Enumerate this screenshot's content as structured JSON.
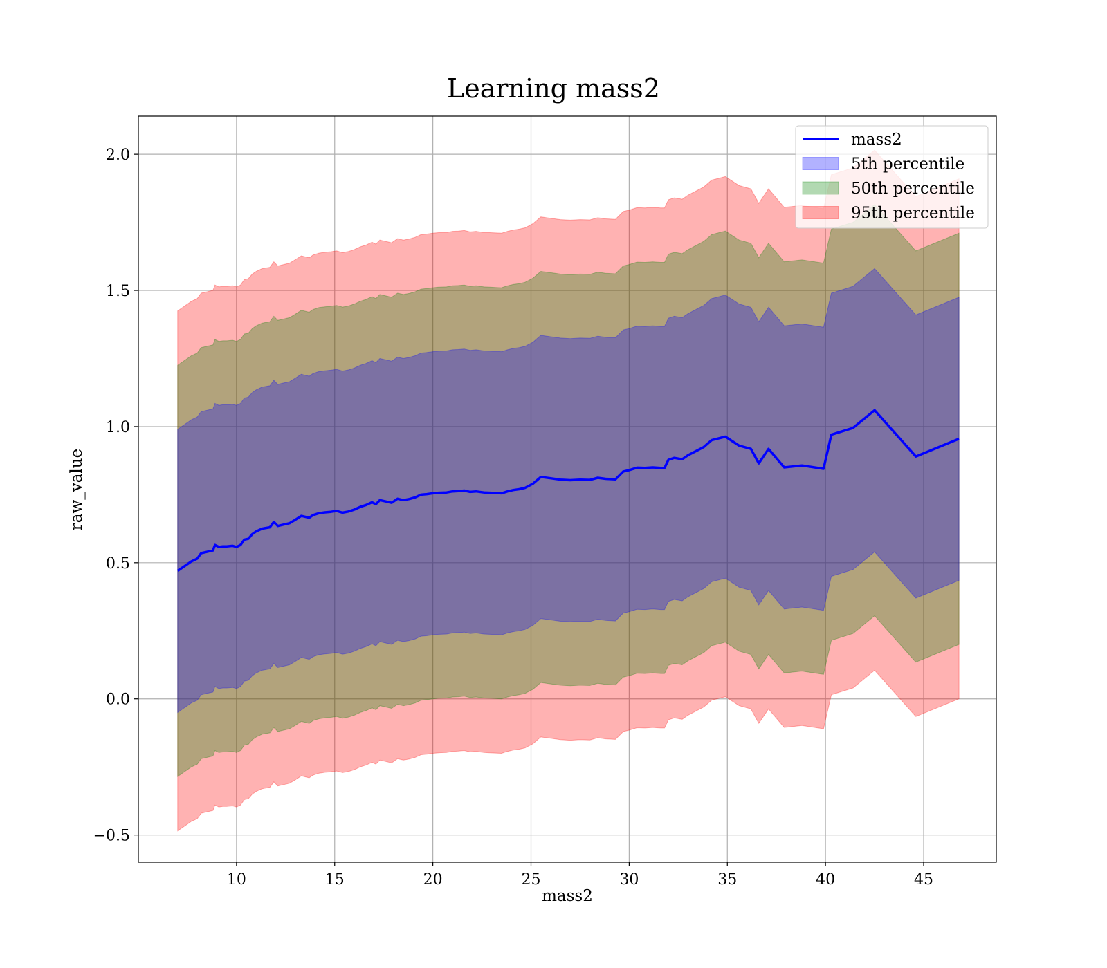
{
  "chart_data": {
    "type": "line",
    "title": "Learning mass2",
    "xlabel": "mass2",
    "ylabel": "raw_value",
    "xlim": [
      5,
      48.7
    ],
    "ylim": [
      -0.6,
      2.14
    ],
    "xticks": [
      10,
      15,
      20,
      25,
      30,
      35,
      40,
      45
    ],
    "yticks": [
      -0.5,
      0.0,
      0.5,
      1.0,
      1.5,
      2.0
    ],
    "ytick_labels": [
      "−0.5",
      "0.0",
      "0.5",
      "1.0",
      "1.5",
      "2.0"
    ],
    "grid": true,
    "legend_position": "top-right",
    "x": [
      7.0,
      7.4,
      7.7,
      8.0,
      8.2,
      8.5,
      8.8,
      8.9,
      9.1,
      9.3,
      9.5,
      9.8,
      10.0,
      10.2,
      10.4,
      10.6,
      10.8,
      11.0,
      11.3,
      11.7,
      11.9,
      12.1,
      12.4,
      12.7,
      13.0,
      13.3,
      13.7,
      13.9,
      14.2,
      14.5,
      14.8,
      15.1,
      15.4,
      15.7,
      16.0,
      16.3,
      16.6,
      16.9,
      17.1,
      17.3,
      17.6,
      17.9,
      18.2,
      18.5,
      18.8,
      19.1,
      19.4,
      19.7,
      20.0,
      20.3,
      20.7,
      21.0,
      21.3,
      21.6,
      21.9,
      22.2,
      22.6,
      22.9,
      23.2,
      23.5,
      23.8,
      24.1,
      24.4,
      24.7,
      25.1,
      25.5,
      26.0,
      26.5,
      27.0,
      27.5,
      28.0,
      28.4,
      28.8,
      29.3,
      29.7,
      30.0,
      30.4,
      30.8,
      31.2,
      31.6,
      31.8,
      32.0,
      32.3,
      32.7,
      33.0,
      33.4,
      33.8,
      34.2,
      34.9,
      35.6,
      36.2,
      36.6,
      37.1,
      37.9,
      38.8,
      39.9,
      40.3,
      41.4,
      42.5,
      44.6,
      46.8
    ],
    "series": [
      {
        "name": "mass2",
        "values": [
          0.47,
          0.49,
          0.505,
          0.515,
          0.535,
          0.54,
          0.545,
          0.565,
          0.558,
          0.56,
          0.56,
          0.562,
          0.558,
          0.565,
          0.585,
          0.588,
          0.605,
          0.615,
          0.625,
          0.63,
          0.65,
          0.635,
          0.64,
          0.645,
          0.658,
          0.672,
          0.665,
          0.675,
          0.682,
          0.685,
          0.687,
          0.69,
          0.684,
          0.688,
          0.695,
          0.705,
          0.712,
          0.722,
          0.715,
          0.73,
          0.725,
          0.72,
          0.735,
          0.73,
          0.734,
          0.74,
          0.75,
          0.752,
          0.755,
          0.757,
          0.758,
          0.762,
          0.763,
          0.765,
          0.76,
          0.762,
          0.758,
          0.757,
          0.756,
          0.755,
          0.762,
          0.767,
          0.77,
          0.775,
          0.79,
          0.815,
          0.81,
          0.805,
          0.803,
          0.805,
          0.804,
          0.812,
          0.808,
          0.806,
          0.835,
          0.84,
          0.849,
          0.848,
          0.85,
          0.848,
          0.848,
          0.878,
          0.885,
          0.88,
          0.895,
          0.91,
          0.925,
          0.95,
          0.963,
          0.93,
          0.918,
          0.865,
          0.918,
          0.85,
          0.857,
          0.845,
          0.97,
          0.995,
          1.06,
          0.89,
          0.955
        ]
      }
    ],
    "bands": [
      {
        "name": "5th percentile",
        "color": "#0000ff",
        "opacity": 0.3,
        "halfwidth": 0.52
      },
      {
        "name": "50th percentile",
        "color": "#008000",
        "opacity": 0.3,
        "halfwidth": 0.755
      },
      {
        "name": "95th percentile",
        "color": "#ff0000",
        "opacity": 0.3,
        "halfwidth": 0.955
      }
    ],
    "line_color": "#0000ff"
  }
}
